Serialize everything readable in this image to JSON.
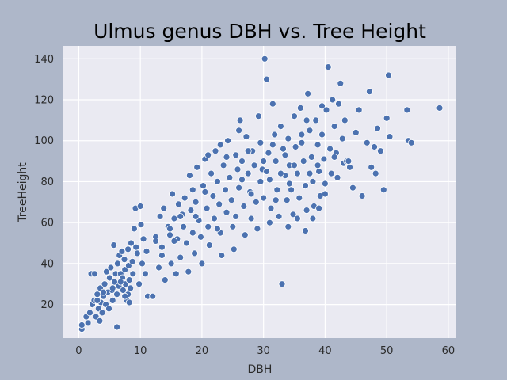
{
  "chart_data": {
    "type": "scatter",
    "title": "Ulmus genus DBH vs. Tree Height",
    "xlabel": "DBH",
    "ylabel": "TreeHeight",
    "xlim": [
      -2.5,
      61.3
    ],
    "ylim": [
      3.6,
      146.3
    ],
    "xticks": [
      0,
      10,
      20,
      30,
      40,
      50,
      60
    ],
    "yticks": [
      20,
      40,
      60,
      80,
      100,
      120,
      140
    ],
    "grid": true,
    "colors": {
      "figure_bg": "#aeb7c9",
      "plot_bg": "#eaeaf2",
      "grid": "#ffffff",
      "marker": "#4c72b0",
      "marker_edge": "#ffffff"
    },
    "points": [
      [
        0.5,
        8
      ],
      [
        0.5,
        10
      ],
      [
        1.2,
        14
      ],
      [
        1.5,
        11
      ],
      [
        1.8,
        16
      ],
      [
        2.0,
        35
      ],
      [
        2.2,
        20
      ],
      [
        2.5,
        22
      ],
      [
        2.6,
        35
      ],
      [
        2.8,
        14
      ],
      [
        3.0,
        25
      ],
      [
        3.2,
        18
      ],
      [
        3.4,
        12
      ],
      [
        3.5,
        28
      ],
      [
        3.6,
        21
      ],
      [
        3.8,
        16
      ],
      [
        4.0,
        24
      ],
      [
        4.2,
        30
      ],
      [
        4.4,
        20
      ],
      [
        4.5,
        36
      ],
      [
        4.7,
        26
      ],
      [
        4.9,
        18
      ],
      [
        5.0,
        33
      ],
      [
        5.2,
        38
      ],
      [
        5.4,
        27
      ],
      [
        5.5,
        22
      ],
      [
        5.7,
        49
      ],
      [
        5.8,
        31
      ],
      [
        6.0,
        35
      ],
      [
        6.2,
        25
      ],
      [
        6.3,
        40
      ],
      [
        6.5,
        29
      ],
      [
        6.6,
        44
      ],
      [
        6.8,
        35
      ],
      [
        7.0,
        46
      ],
      [
        7.1,
        33
      ],
      [
        7.2,
        27
      ],
      [
        7.4,
        42
      ],
      [
        7.5,
        37
      ],
      [
        7.6,
        30
      ],
      [
        7.8,
        22
      ],
      [
        8.0,
        47
      ],
      [
        8.1,
        39
      ],
      [
        8.2,
        32
      ],
      [
        8.4,
        28
      ],
      [
        8.5,
        50
      ],
      [
        8.7,
        41
      ],
      [
        8.8,
        35
      ],
      [
        9.0,
        57
      ],
      [
        9.2,
        67
      ],
      [
        9.3,
        48
      ],
      [
        9.5,
        45
      ],
      [
        9.8,
        30
      ],
      [
        10.0,
        68
      ],
      [
        10.1,
        59
      ],
      [
        10.3,
        40
      ],
      [
        10.5,
        52
      ],
      [
        10.8,
        35
      ],
      [
        11.0,
        46
      ],
      [
        11.2,
        24
      ],
      [
        6.2,
        9
      ],
      [
        8.0,
        25
      ],
      [
        4.0,
        26
      ],
      [
        3.0,
        22
      ],
      [
        5.5,
        28
      ],
      [
        6.8,
        31
      ],
      [
        7.5,
        24
      ],
      [
        8.2,
        21
      ],
      [
        12.0,
        24
      ],
      [
        12.5,
        53
      ],
      [
        13.0,
        38
      ],
      [
        13.2,
        63
      ],
      [
        13.5,
        48
      ],
      [
        13.8,
        67
      ],
      [
        14.0,
        32
      ],
      [
        14.5,
        58
      ],
      [
        14.8,
        54
      ],
      [
        15.0,
        40
      ],
      [
        15.2,
        74
      ],
      [
        15.5,
        62
      ],
      [
        15.8,
        35
      ],
      [
        16.0,
        52
      ],
      [
        16.2,
        69
      ],
      [
        16.5,
        43
      ],
      [
        16.8,
        64
      ],
      [
        17.0,
        58
      ],
      [
        17.2,
        72
      ],
      [
        17.5,
        50
      ],
      [
        17.8,
        36
      ],
      [
        18.0,
        83
      ],
      [
        18.2,
        66
      ],
      [
        18.5,
        55
      ],
      [
        18.8,
        45
      ],
      [
        19.0,
        70
      ],
      [
        19.2,
        87
      ],
      [
        19.5,
        61
      ],
      [
        19.8,
        53
      ],
      [
        20.0,
        40
      ],
      [
        20.2,
        78
      ],
      [
        20.5,
        91
      ],
      [
        20.8,
        67
      ],
      [
        21.0,
        58
      ],
      [
        21.2,
        49
      ],
      [
        21.5,
        84
      ],
      [
        21.8,
        73
      ],
      [
        22.0,
        62
      ],
      [
        22.2,
        95
      ],
      [
        22.5,
        80
      ],
      [
        22.8,
        69
      ],
      [
        23.0,
        55
      ],
      [
        23.2,
        44
      ],
      [
        23.5,
        88
      ],
      [
        23.8,
        76
      ],
      [
        24.0,
        65
      ],
      [
        24.2,
        100
      ],
      [
        24.5,
        82
      ],
      [
        24.8,
        71
      ],
      [
        25.0,
        58
      ],
      [
        25.2,
        47
      ],
      [
        25.5,
        93
      ],
      [
        25.8,
        86
      ],
      [
        26.0,
        77
      ],
      [
        26.2,
        110
      ],
      [
        26.5,
        90
      ],
      [
        26.8,
        68
      ],
      [
        27.0,
        54
      ],
      [
        27.2,
        102
      ],
      [
        27.5,
        84
      ],
      [
        27.8,
        75
      ],
      [
        28.0,
        62
      ],
      [
        28.2,
        95
      ],
      [
        28.5,
        88
      ],
      [
        28.8,
        70
      ],
      [
        29.0,
        57
      ],
      [
        29.2,
        112
      ],
      [
        29.5,
        99
      ],
      [
        29.8,
        86
      ],
      [
        30.0,
        72
      ],
      [
        30.2,
        140
      ],
      [
        30.5,
        130
      ],
      [
        30.8,
        94
      ],
      [
        31.0,
        81
      ],
      [
        31.2,
        67
      ],
      [
        31.5,
        118
      ],
      [
        31.8,
        103
      ],
      [
        32.0,
        90
      ],
      [
        32.2,
        76
      ],
      [
        32.5,
        63
      ],
      [
        32.8,
        107
      ],
      [
        33.0,
        30
      ],
      [
        33.2,
        96
      ],
      [
        33.5,
        83
      ],
      [
        33.8,
        71
      ],
      [
        34.0,
        101
      ],
      [
        34.2,
        88
      ],
      [
        34.5,
        76
      ],
      [
        34.8,
        64
      ],
      [
        35.0,
        112
      ],
      [
        35.2,
        97
      ],
      [
        35.5,
        84
      ],
      [
        35.8,
        72
      ],
      [
        36.0,
        116
      ],
      [
        36.2,
        103
      ],
      [
        36.5,
        90
      ],
      [
        36.8,
        78
      ],
      [
        37.0,
        66
      ],
      [
        37.2,
        123
      ],
      [
        37.5,
        105
      ],
      [
        37.8,
        92
      ],
      [
        38.0,
        80
      ],
      [
        38.2,
        68
      ],
      [
        38.5,
        110
      ],
      [
        38.8,
        98
      ],
      [
        39.0,
        85
      ],
      [
        39.2,
        73
      ],
      [
        39.5,
        103
      ],
      [
        39.8,
        91
      ],
      [
        40.0,
        79
      ],
      [
        40.2,
        115
      ],
      [
        40.5,
        136
      ],
      [
        40.8,
        96
      ],
      [
        41.0,
        84
      ],
      [
        41.2,
        120
      ],
      [
        41.5,
        107
      ],
      [
        41.8,
        94
      ],
      [
        42.0,
        82
      ],
      [
        42.2,
        118
      ],
      [
        42.5,
        128
      ],
      [
        42.8,
        101
      ],
      [
        43.0,
        89
      ],
      [
        43.2,
        110
      ],
      [
        43.5,
        90
      ],
      [
        44.0,
        87
      ],
      [
        44.5,
        77
      ],
      [
        45.0,
        104
      ],
      [
        45.5,
        115
      ],
      [
        46.0,
        73
      ],
      [
        46.8,
        99
      ],
      [
        47.2,
        124
      ],
      [
        47.5,
        87
      ],
      [
        48.0,
        97
      ],
      [
        48.2,
        84
      ],
      [
        48.5,
        106
      ],
      [
        49.0,
        95
      ],
      [
        49.5,
        76
      ],
      [
        50.0,
        111
      ],
      [
        50.3,
        132
      ],
      [
        50.5,
        102
      ],
      [
        53.3,
        115
      ],
      [
        53.5,
        100
      ],
      [
        54.0,
        99
      ],
      [
        58.6,
        116
      ],
      [
        19.0,
        63
      ],
      [
        20.5,
        75
      ],
      [
        22.5,
        57
      ],
      [
        24.0,
        92
      ],
      [
        25.5,
        63
      ],
      [
        26.5,
        81
      ],
      [
        28.0,
        74
      ],
      [
        29.5,
        80
      ],
      [
        31.0,
        60
      ],
      [
        32.0,
        71
      ],
      [
        34.0,
        58
      ],
      [
        35.5,
        62
      ],
      [
        36.8,
        56
      ],
      [
        38.0,
        62
      ],
      [
        39.0,
        67
      ],
      [
        40.0,
        74
      ],
      [
        37.5,
        84
      ],
      [
        35.0,
        88
      ],
      [
        33.5,
        93
      ],
      [
        30.5,
        85
      ],
      [
        27.5,
        95
      ],
      [
        26.0,
        105
      ],
      [
        23.0,
        98
      ],
      [
        21.0,
        93
      ],
      [
        18.5,
        76
      ],
      [
        16.5,
        63
      ],
      [
        14.8,
        57
      ],
      [
        13.5,
        44
      ],
      [
        12.5,
        51
      ],
      [
        15.5,
        51
      ],
      [
        30.0,
        90
      ],
      [
        31.5,
        98
      ],
      [
        32.8,
        84
      ],
      [
        34.2,
        79
      ],
      [
        36.2,
        99
      ],
      [
        38.8,
        88
      ],
      [
        41.5,
        92
      ],
      [
        43.8,
        90
      ],
      [
        39.5,
        117
      ],
      [
        37.0,
        110
      ]
    ]
  }
}
